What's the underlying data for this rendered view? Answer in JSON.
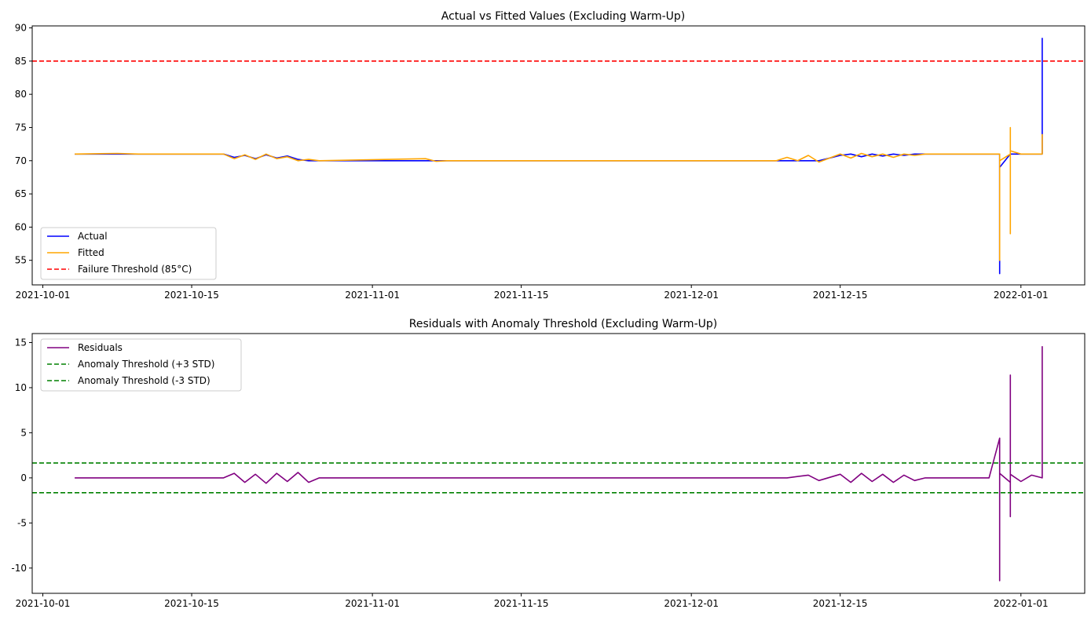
{
  "chart_data": [
    {
      "type": "line",
      "title": "Actual vs Fitted Values (Excluding Warm-Up)",
      "xlabel": "",
      "ylabel": "",
      "xlim": [
        "2021-09-30",
        "2022-01-07"
      ],
      "ylim": [
        51.3,
        90.3
      ],
      "x_ticks": [
        "2021-10-01",
        "2021-10-15",
        "2021-11-01",
        "2021-11-15",
        "2021-12-01",
        "2021-12-15",
        "2022-01-01"
      ],
      "y_ticks": [
        55,
        60,
        65,
        70,
        75,
        80,
        85,
        90
      ],
      "grid": false,
      "legend_position": "lower-left",
      "series": [
        {
          "name": "Actual",
          "color": "#0000ff",
          "x": [
            "2021-10-04",
            "2021-10-10",
            "2021-10-18",
            "2021-10-19",
            "2021-10-20",
            "2021-10-21",
            "2021-10-22",
            "2021-10-23",
            "2021-10-24",
            "2021-10-25",
            "2021-10-26",
            "2021-10-27",
            "2021-11-07",
            "2021-11-08",
            "2021-12-10",
            "2021-12-12",
            "2021-12-13",
            "2021-12-15",
            "2021-12-16",
            "2021-12-17",
            "2021-12-18",
            "2021-12-19",
            "2021-12-20",
            "2021-12-21",
            "2021-12-22",
            "2021-12-23",
            "2021-12-30",
            "2021-12-30",
            "2021-12-30",
            "2021-12-31",
            "2022-01-01",
            "2022-01-02",
            "2022-01-03",
            "2022-01-03",
            "2022-01-03",
            "2022-01-03"
          ],
          "values": [
            71.0,
            71.0,
            71.0,
            70.5,
            70.8,
            70.3,
            70.9,
            70.4,
            70.7,
            70.2,
            70.0,
            70.0,
            70.0,
            70.0,
            70.0,
            70.0,
            70.0,
            70.8,
            71.0,
            70.6,
            71.0,
            70.7,
            71.0,
            70.8,
            71.0,
            71.0,
            71.0,
            53.0,
            69.0,
            71.0,
            71.0,
            71.0,
            71.0,
            74.0,
            88.5,
            88.5
          ]
        },
        {
          "name": "Fitted",
          "color": "#ffa500",
          "x": [
            "2021-10-04",
            "2021-10-08",
            "2021-10-10",
            "2021-10-18",
            "2021-10-19",
            "2021-10-20",
            "2021-10-21",
            "2021-10-22",
            "2021-10-23",
            "2021-10-24",
            "2021-10-25",
            "2021-10-26",
            "2021-10-27",
            "2021-11-06",
            "2021-11-07",
            "2021-11-08",
            "2021-12-09",
            "2021-12-10",
            "2021-12-11",
            "2021-12-12",
            "2021-12-13",
            "2021-12-15",
            "2021-12-16",
            "2021-12-17",
            "2021-12-18",
            "2021-12-19",
            "2021-12-20",
            "2021-12-21",
            "2021-12-22",
            "2021-12-23",
            "2021-12-30",
            "2021-12-30",
            "2021-12-30",
            "2021-12-31",
            "2021-12-31",
            "2021-12-31",
            "2021-12-31",
            "2021-12-31",
            "2022-01-01",
            "2022-01-02",
            "2022-01-03",
            "2022-01-03"
          ],
          "values": [
            71.0,
            71.1,
            71.0,
            71.0,
            70.3,
            70.9,
            70.2,
            71.0,
            70.3,
            70.6,
            70.0,
            70.2,
            70.0,
            70.3,
            69.9,
            70.0,
            70.0,
            70.5,
            70.0,
            70.8,
            69.8,
            71.0,
            70.4,
            71.1,
            70.6,
            71.0,
            70.5,
            71.0,
            70.8,
            71.0,
            71.0,
            55.0,
            70.0,
            71.0,
            59.0,
            75.0,
            71.0,
            71.5,
            71.0,
            71.0,
            71.0,
            74.0
          ]
        },
        {
          "name": "Failure Threshold (85°C)",
          "color": "#ff0000",
          "style": "dashed",
          "hline": 85
        }
      ]
    },
    {
      "type": "line",
      "title": "Residuals with Anomaly Threshold (Excluding Warm-Up)",
      "xlabel": "",
      "ylabel": "",
      "xlim": [
        "2021-09-30",
        "2022-01-07"
      ],
      "ylim": [
        -12.8,
        16.0
      ],
      "x_ticks": [
        "2021-10-01",
        "2021-10-15",
        "2021-11-01",
        "2021-11-15",
        "2021-12-01",
        "2021-12-15",
        "2022-01-01"
      ],
      "y_ticks": [
        -10,
        -5,
        0,
        5,
        10,
        15
      ],
      "grid": false,
      "legend_position": "upper-left",
      "series": [
        {
          "name": "Residuals",
          "color": "#800080",
          "x": [
            "2021-10-04",
            "2021-10-10",
            "2021-10-18",
            "2021-10-19",
            "2021-10-20",
            "2021-10-21",
            "2021-10-22",
            "2021-10-23",
            "2021-10-24",
            "2021-10-25",
            "2021-10-26",
            "2021-10-27",
            "2021-11-07",
            "2021-11-08",
            "2021-12-10",
            "2021-12-12",
            "2021-12-13",
            "2021-12-15",
            "2021-12-16",
            "2021-12-17",
            "2021-12-18",
            "2021-12-19",
            "2021-12-20",
            "2021-12-21",
            "2021-12-22",
            "2021-12-23",
            "2021-12-29",
            "2021-12-30",
            "2021-12-30",
            "2021-12-30",
            "2021-12-31",
            "2021-12-31",
            "2021-12-31",
            "2021-12-31",
            "2022-01-01",
            "2022-01-02",
            "2022-01-03",
            "2022-01-03",
            "2022-01-03"
          ],
          "values": [
            0.0,
            0.0,
            0.0,
            0.5,
            -0.5,
            0.4,
            -0.6,
            0.5,
            -0.4,
            0.6,
            -0.5,
            0.0,
            0.0,
            0.0,
            0.0,
            0.3,
            -0.3,
            0.4,
            -0.5,
            0.5,
            -0.4,
            0.4,
            -0.5,
            0.3,
            -0.3,
            0.0,
            0.0,
            4.4,
            -11.4,
            0.5,
            -0.5,
            11.4,
            -4.3,
            0.4,
            -0.4,
            0.3,
            0.0,
            2.0,
            14.6
          ]
        },
        {
          "name": "Anomaly Threshold (+3 STD)",
          "color": "#008000",
          "style": "dashed",
          "hline": 1.65
        },
        {
          "name": "Anomaly Threshold (-3 STD)",
          "color": "#008000",
          "style": "dashed",
          "hline": -1.65
        }
      ]
    }
  ]
}
